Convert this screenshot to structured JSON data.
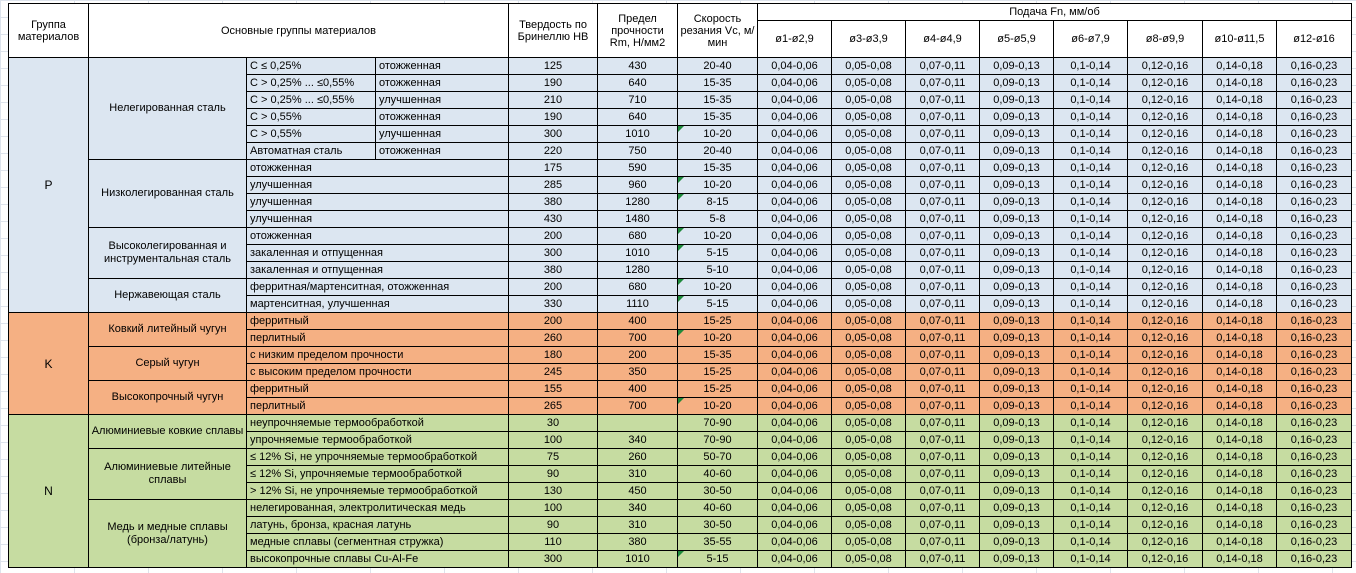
{
  "header": {
    "col_group": "Группа материалов",
    "col_materials": "Основные группы материалов",
    "col_hb": "Твердость по Бринеллю НВ",
    "col_rm": "Предел прочности Rm, Н/мм2",
    "col_vc": "Скорость резания Vc, м/мин",
    "feed_title": "Подача Fn, мм/об",
    "feed_cols": [
      "ø1-ø2,9",
      "ø3-ø3,9",
      "ø4-ø4,9",
      "ø5-ø5,9",
      "ø6-ø7,9",
      "ø8-ø9,9",
      "ø10-ø11,5",
      "ø12-ø16"
    ]
  },
  "feed_values": [
    "0,04-0,06",
    "0,05-0,08",
    "0,07-0,11",
    "0,09-0,13",
    "0,1-0,14",
    "0,12-0,16",
    "0,14-0,18",
    "0,16-0,23"
  ],
  "comment_triangle_color": "#1f8a3b",
  "groups": [
    {
      "letter": "P",
      "color": "#DCE6F1",
      "subgroups": [
        {
          "name": "Нелегированная сталь",
          "rows": [
            {
              "cells": [
                "C ≤ 0,25%",
                "отожженная"
              ],
              "hb": "125",
              "rm": "430",
              "vc": "20-40",
              "note": false
            },
            {
              "cells": [
                "C > 0,25% ... ≤0,55%",
                "отожженная"
              ],
              "hb": "190",
              "rm": "640",
              "vc": "15-35",
              "note": false
            },
            {
              "cells": [
                "C > 0,25% ... ≤0,55%",
                "улучшенная"
              ],
              "hb": "210",
              "rm": "710",
              "vc": "15-35",
              "note": false
            },
            {
              "cells": [
                "C > 0,55%",
                "отожженная"
              ],
              "hb": "190",
              "rm": "640",
              "vc": "15-35",
              "note": false
            },
            {
              "cells": [
                "C > 0,55%",
                "улучшенная"
              ],
              "hb": "300",
              "rm": "1010",
              "vc": "10-20",
              "note": true
            },
            {
              "cells": [
                "Автоматная сталь",
                "отожженная"
              ],
              "hb": "220",
              "rm": "750",
              "vc": "20-40",
              "note": false
            }
          ]
        },
        {
          "name": "Низколегированная сталь",
          "rows": [
            {
              "cells": [
                "отожженная"
              ],
              "hb": "175",
              "rm": "590",
              "vc": "15-35",
              "note": false
            },
            {
              "cells": [
                "улучшенная"
              ],
              "hb": "285",
              "rm": "960",
              "vc": "10-20",
              "note": true
            },
            {
              "cells": [
                "улучшенная"
              ],
              "hb": "380",
              "rm": "1280",
              "vc": "8-15",
              "note": true
            },
            {
              "cells": [
                "улучшенная"
              ],
              "hb": "430",
              "rm": "1480",
              "vc": "5-8",
              "note": false
            }
          ]
        },
        {
          "name": "Высоколегированная и инструментальная сталь",
          "rows": [
            {
              "cells": [
                "отожженная"
              ],
              "hb": "200",
              "rm": "680",
              "vc": "10-20",
              "note": true
            },
            {
              "cells": [
                "закаленная и отпущенная"
              ],
              "hb": "300",
              "rm": "1010",
              "vc": "5-15",
              "note": true
            },
            {
              "cells": [
                "закаленная и отпущенная"
              ],
              "hb": "380",
              "rm": "1280",
              "vc": "5-10",
              "note": false
            }
          ]
        },
        {
          "name": "Нержавеющая сталь",
          "rows": [
            {
              "cells": [
                "ферритная/мартенситная, отожженная"
              ],
              "hb": "200",
              "rm": "680",
              "vc": "10-20",
              "note": true
            },
            {
              "cells": [
                "мартенситная, улучшенная"
              ],
              "hb": "330",
              "rm": "1110",
              "vc": "5-15",
              "note": true
            }
          ]
        }
      ]
    },
    {
      "letter": "K",
      "color": "#F5B083",
      "subgroups": [
        {
          "name": "Ковкий литейный чугун",
          "rows": [
            {
              "cells": [
                "ферритный"
              ],
              "hb": "200",
              "rm": "400",
              "vc": "15-25",
              "note": false
            },
            {
              "cells": [
                "перлитный"
              ],
              "hb": "260",
              "rm": "700",
              "vc": "10-20",
              "note": true
            }
          ]
        },
        {
          "name": "Серый чугун",
          "rows": [
            {
              "cells": [
                "с низким пределом прочности"
              ],
              "hb": "180",
              "rm": "200",
              "vc": "15-35",
              "note": false
            },
            {
              "cells": [
                "с высоким пределом прочности"
              ],
              "hb": "245",
              "rm": "350",
              "vc": "15-25",
              "note": false
            }
          ]
        },
        {
          "name": "Высокопрочный чугун",
          "rows": [
            {
              "cells": [
                "ферритный"
              ],
              "hb": "155",
              "rm": "400",
              "vc": "15-25",
              "note": false
            },
            {
              "cells": [
                "перлитный"
              ],
              "hb": "265",
              "rm": "700",
              "vc": "10-20",
              "note": true
            }
          ]
        }
      ]
    },
    {
      "letter": "N",
      "color": "#C6DCA1",
      "subgroups": [
        {
          "name": "Алюминиевые ковкие сплавы",
          "rows": [
            {
              "cells": [
                "неупрочняемые термообработкой"
              ],
              "hb": "30",
              "rm": "",
              "vc": "70-90",
              "note": false
            },
            {
              "cells": [
                "упрочняемые термообработкой"
              ],
              "hb": "100",
              "rm": "340",
              "vc": "70-90",
              "note": false
            }
          ]
        },
        {
          "name": "Алюминиевые литейные сплавы",
          "rows": [
            {
              "cells": [
                "≤ 12% Si, не упрочняемые термообработкой"
              ],
              "hb": "75",
              "rm": "260",
              "vc": "50-70",
              "note": false
            },
            {
              "cells": [
                "≤ 12% Si, упрочняемые термообработкой"
              ],
              "hb": "90",
              "rm": "310",
              "vc": "40-60",
              "note": false
            },
            {
              "cells": [
                "> 12% Si, не упрочняемые термообработкой"
              ],
              "hb": "130",
              "rm": "450",
              "vc": "30-50",
              "note": false
            }
          ]
        },
        {
          "name": "Медь и медные сплавы (бронза/латунь)",
          "rows": [
            {
              "cells": [
                "нелегированная, электролитическая медь"
              ],
              "hb": "100",
              "rm": "340",
              "vc": "40-60",
              "note": false
            },
            {
              "cells": [
                "латунь, бронза, красная латунь"
              ],
              "hb": "90",
              "rm": "310",
              "vc": "30-50",
              "note": false
            },
            {
              "cells": [
                "медные сплавы (сегментная стружка)"
              ],
              "hb": "110",
              "rm": "380",
              "vc": "35-55",
              "note": false
            },
            {
              "cells": [
                "высокопрочные сплавы Cu-Al-Fe"
              ],
              "hb": "300",
              "rm": "1010",
              "vc": "5-15",
              "note": true
            }
          ]
        }
      ]
    }
  ]
}
